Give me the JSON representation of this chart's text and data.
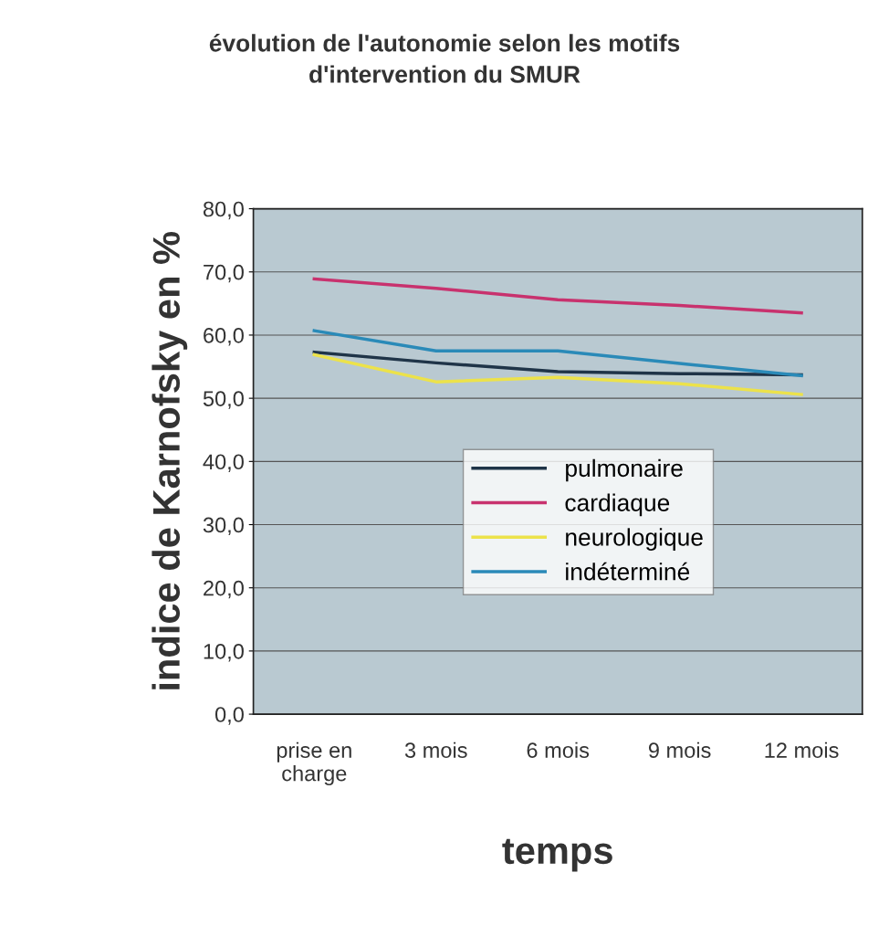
{
  "chart_data": {
    "type": "line",
    "title": "évolution de l'autonomie selon les motifs\nd'intervention du SMUR",
    "xlabel": "temps",
    "ylabel": "indice de Karnofsky en %",
    "categories": [
      "prise en\ncharge",
      "3 mois",
      "6 mois",
      "9 mois",
      "12 mois"
    ],
    "series": [
      {
        "name": "pulmonaire",
        "color": "#1f3448",
        "values": [
          57.3,
          55.6,
          54.2,
          53.9,
          53.7
        ]
      },
      {
        "name": "cardiaque",
        "color": "#c8326e",
        "values": [
          68.9,
          67.4,
          65.6,
          64.7,
          63.5
        ]
      },
      {
        "name": "neurologique",
        "color": "#ece24a",
        "values": [
          56.9,
          52.6,
          53.3,
          52.3,
          50.6
        ]
      },
      {
        "name": "indéterminé",
        "color": "#2a8ab8",
        "values": [
          60.7,
          57.5,
          57.5,
          55.5,
          53.6
        ]
      }
    ],
    "ylim": [
      0,
      80
    ],
    "yticks": [
      {
        "value": 0,
        "label": "0,0"
      },
      {
        "value": 10,
        "label": "10,0"
      },
      {
        "value": 20,
        "label": "20,0"
      },
      {
        "value": 30,
        "label": "30,0"
      },
      {
        "value": 40,
        "label": "40,0"
      },
      {
        "value": 50,
        "label": "50,0"
      },
      {
        "value": 60,
        "label": "60,0"
      },
      {
        "value": 70,
        "label": "70,0"
      },
      {
        "value": 80,
        "label": "80,0"
      }
    ],
    "grid": "y",
    "legend": "center",
    "marker": "none",
    "line_style": "solid"
  }
}
